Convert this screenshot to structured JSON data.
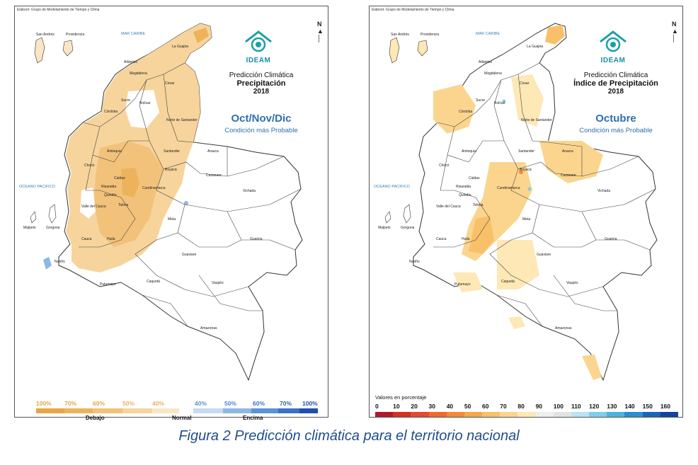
{
  "left_panel": {
    "credit": "Elaboró: Grupo de Modelamiento de Tiempo y Clima",
    "logo_text": "IDEAM",
    "title_line1": "Predicción Climática",
    "title_line2": "Precipitación",
    "title_line3": "2018",
    "season": "Oct/Nov/Dic",
    "condition": "Condición más Probable",
    "sea_labels": {
      "caribe": "MAR CARIBE",
      "pacifico": "OCEANO PACIFICO"
    },
    "region_labels": [
      "San Andrés",
      "Providencia",
      "La Guajira",
      "Magdalena",
      "Atlántico",
      "Cesar",
      "Bolívar",
      "Sucre",
      "Córdoba",
      "Norte de Santander",
      "Antioquia",
      "Santander",
      "Arauca",
      "Chocó",
      "Boyacá",
      "Casanare",
      "Caldas",
      "Risaralda",
      "Cundinamarca",
      "Quindío",
      "Tolima",
      "Valle del Cauca",
      "Vichada",
      "Meta",
      "Cauca",
      "Huila",
      "Guainía",
      "Guaviare",
      "Nariño",
      "Putumayo",
      "Caquetá",
      "Vaupés",
      "Amazonas",
      "Malpelo",
      "Gorgona"
    ],
    "legend": {
      "percents": [
        "100%",
        "70%",
        "60%",
        "50%",
        "40%",
        "40%",
        "50%",
        "60%",
        "70%",
        "100%"
      ],
      "categories": [
        "Debajo",
        "Normal",
        "Encima"
      ],
      "colors": [
        "#e8a544",
        "#edb35c",
        "#f2c27a",
        "#f6d49c",
        "#fae6c6",
        "#c7daf2",
        "#8fb7e6",
        "#5a93d6",
        "#3b72c4",
        "#1f4fae"
      ]
    }
  },
  "right_panel": {
    "credit": "Elaboró: Grupo de Modelamiento de Tiempo y Clima",
    "logo_text": "IDEAM",
    "title_line1": "Predicción Climática",
    "title_line2": "Índice de Precipitación",
    "title_line3": "2018",
    "season": "Octubre",
    "condition": "Condición más Probable",
    "sea_labels": {
      "caribe": "MAR CARIBE",
      "pacifico": "OCEANO PACIFICO"
    },
    "legend": {
      "title": "Valores en porcentaje",
      "values": [
        "0",
        "10",
        "20",
        "30",
        "40",
        "50",
        "60",
        "70",
        "80",
        "90",
        "100",
        "110",
        "120",
        "130",
        "140",
        "150",
        "160"
      ],
      "colors": [
        "#b2182b",
        "#d7301f",
        "#e34a33",
        "#ee6a2d",
        "#f3893a",
        "#f6a64e",
        "#f9c06a",
        "#fbd58e",
        "#fde8b6",
        "#eeeeee",
        "#e3e3e3",
        "#b8e3f2",
        "#7fcde9",
        "#4eb3df",
        "#2a8fd0",
        "#1c64b8",
        "#1442a0"
      ]
    }
  },
  "caption": "Figura 2 Predicción climática para el territorio nacional"
}
